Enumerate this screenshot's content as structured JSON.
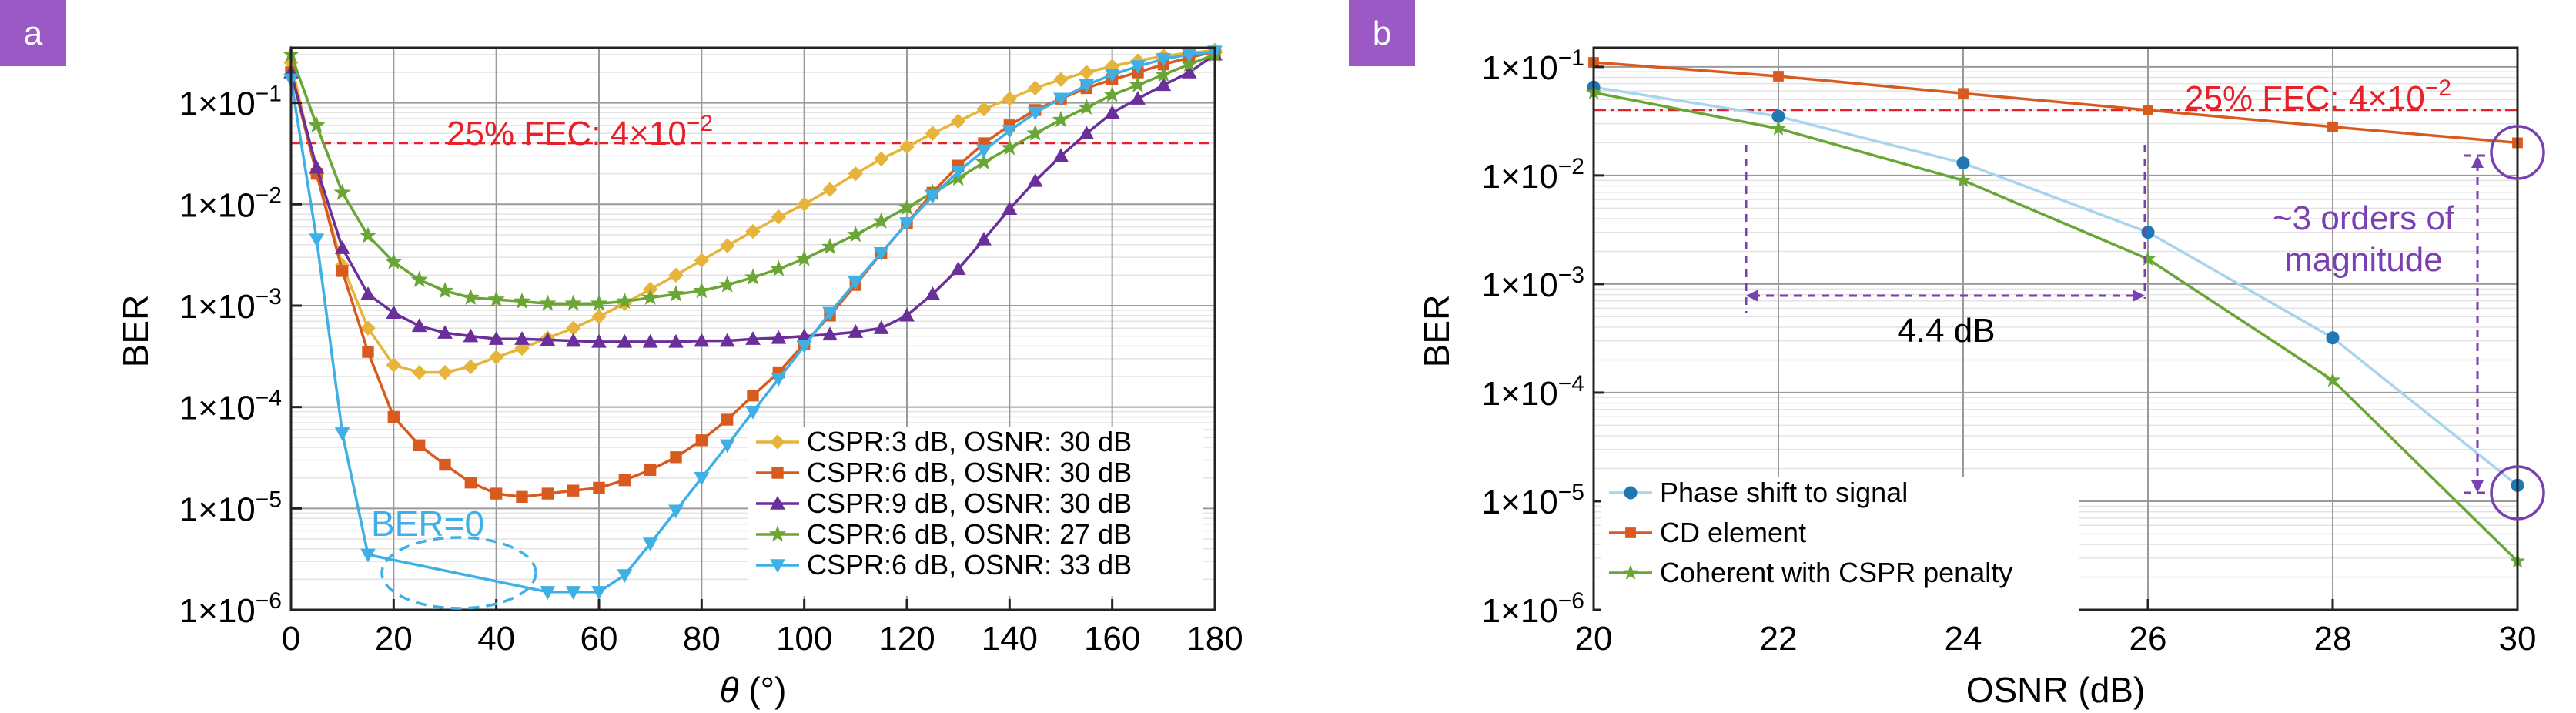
{
  "colors": {
    "badge": "#9b59c6",
    "fec": "#e8202a",
    "blue": "#3fb0e6",
    "orange": "#d85a1f",
    "purple": "#6a2f9a",
    "green": "#6aa636",
    "yellow": "#e6b43a",
    "blue_dark": "#1f77b4",
    "blue_light": "#a9d4ee",
    "annot": "#7a3fb0"
  },
  "chart_data": [
    {
      "panel_label": "a",
      "type": "line",
      "xlabel_symbol": "θ",
      "xlabel_unit": " (°)",
      "ylabel": "BER",
      "xlim": [
        0,
        180
      ],
      "ylim": [
        1e-06,
        0.35
      ],
      "yscale": "log",
      "grid": true,
      "x_ticks": [
        "0",
        "20",
        "40",
        "60",
        "80",
        "100",
        "120",
        "140",
        "160",
        "180"
      ],
      "y_ticks": [
        {
          "mant": "1×10",
          "exp": "−1"
        },
        {
          "mant": "1×10",
          "exp": "−2"
        },
        {
          "mant": "1×10",
          "exp": "−3"
        },
        {
          "mant": "1×10",
          "exp": "−4"
        },
        {
          "mant": "1×10",
          "exp": "−5"
        },
        {
          "mant": "1×10",
          "exp": "−6"
        }
      ],
      "fec_threshold": 0.04,
      "fec_label": "25% FEC: 4×10",
      "fec_label_exp": "−2",
      "annotation_ber0": "BER=0",
      "legend_position": "bottom-right",
      "series": [
        {
          "name": "CSPR:3 dB, OSNR: 30 dB",
          "marker": "diamond",
          "x": [
            0,
            5,
            10,
            15,
            20,
            25,
            30,
            35,
            40,
            45,
            50,
            55,
            60,
            65,
            70,
            75,
            80,
            85,
            90,
            95,
            100,
            105,
            110,
            115,
            120,
            125,
            130,
            135,
            140,
            145,
            150,
            155,
            160,
            165,
            170,
            175,
            180
          ],
          "y": [
            0.25,
            0.02,
            0.0025,
            0.0006,
            0.00026,
            0.00022,
            0.00022,
            0.00025,
            0.00031,
            0.00038,
            0.00048,
            0.0006,
            0.00078,
            0.00105,
            0.00145,
            0.002,
            0.0028,
            0.0039,
            0.0054,
            0.0075,
            0.01,
            0.014,
            0.02,
            0.028,
            0.037,
            0.05,
            0.066,
            0.087,
            0.11,
            0.14,
            0.17,
            0.2,
            0.23,
            0.26,
            0.29,
            0.31,
            0.33
          ]
        },
        {
          "name": "CSPR:6 dB, OSNR: 30 dB",
          "marker": "square",
          "x": [
            0,
            5,
            10,
            15,
            20,
            25,
            30,
            35,
            40,
            45,
            50,
            55,
            60,
            65,
            70,
            75,
            80,
            85,
            90,
            95,
            100,
            105,
            110,
            115,
            120,
            125,
            130,
            135,
            140,
            145,
            150,
            155,
            160,
            165,
            170,
            175,
            180
          ],
          "y": [
            0.2,
            0.02,
            0.0022,
            0.00035,
            8e-05,
            4.2e-05,
            2.7e-05,
            1.8e-05,
            1.4e-05,
            1.3e-05,
            1.4e-05,
            1.5e-05,
            1.6e-05,
            1.9e-05,
            2.4e-05,
            3.2e-05,
            4.7e-05,
            7.5e-05,
            0.00013,
            0.00022,
            0.00042,
            0.0008,
            0.0016,
            0.0033,
            0.0065,
            0.013,
            0.024,
            0.04,
            0.06,
            0.085,
            0.11,
            0.14,
            0.17,
            0.2,
            0.24,
            0.28,
            0.32
          ]
        },
        {
          "name": "CSPR:9 dB, OSNR: 30 dB",
          "marker": "triangle",
          "x": [
            0,
            5,
            10,
            15,
            20,
            25,
            30,
            35,
            40,
            45,
            50,
            55,
            60,
            65,
            70,
            75,
            80,
            85,
            90,
            95,
            100,
            105,
            110,
            115,
            120,
            125,
            130,
            135,
            140,
            145,
            150,
            155,
            160,
            165,
            170,
            175,
            180
          ],
          "y": [
            0.2,
            0.023,
            0.0037,
            0.0013,
            0.00085,
            0.00063,
            0.00054,
            0.0005,
            0.00047,
            0.00047,
            0.00046,
            0.00045,
            0.00044,
            0.00044,
            0.00044,
            0.00044,
            0.00045,
            0.00045,
            0.00047,
            0.00048,
            0.0005,
            0.00052,
            0.00055,
            0.0006,
            0.0008,
            0.0013,
            0.0023,
            0.0045,
            0.009,
            0.017,
            0.03,
            0.05,
            0.08,
            0.11,
            0.15,
            0.2,
            0.3
          ]
        },
        {
          "name": "CSPR:6 dB, OSNR: 27 dB",
          "marker": "star",
          "x": [
            0,
            5,
            10,
            15,
            20,
            25,
            30,
            35,
            40,
            45,
            50,
            55,
            60,
            65,
            70,
            75,
            80,
            85,
            90,
            95,
            100,
            105,
            110,
            115,
            120,
            125,
            130,
            135,
            140,
            145,
            150,
            155,
            160,
            165,
            170,
            175,
            180
          ],
          "y": [
            0.3,
            0.06,
            0.013,
            0.0049,
            0.0027,
            0.0018,
            0.0014,
            0.0012,
            0.00115,
            0.0011,
            0.00105,
            0.00105,
            0.00105,
            0.0011,
            0.0012,
            0.0013,
            0.0014,
            0.0016,
            0.0019,
            0.0023,
            0.0029,
            0.0038,
            0.005,
            0.0068,
            0.0093,
            0.013,
            0.018,
            0.026,
            0.036,
            0.05,
            0.068,
            0.09,
            0.12,
            0.15,
            0.19,
            0.24,
            0.3
          ]
        },
        {
          "name": "CSPR:6 dB, OSNR: 33 dB",
          "marker": "triangle-down",
          "x": [
            0,
            5,
            10,
            15,
            50,
            55,
            60,
            65,
            70,
            75,
            80,
            85,
            90,
            95,
            100,
            105,
            110,
            115,
            120,
            125,
            130,
            135,
            140,
            145,
            150,
            155,
            160,
            165,
            170,
            175,
            180
          ],
          "y": [
            0.17,
            0.0045,
            5.5e-05,
            3.5e-06,
            1.5e-06,
            1.5e-06,
            1.5e-06,
            2.2e-06,
            4.5e-06,
            9.5e-06,
            2e-05,
            4.2e-05,
            9e-05,
            0.00019,
            0.0004,
            0.00085,
            0.0017,
            0.0033,
            0.0065,
            0.012,
            0.021,
            0.034,
            0.053,
            0.08,
            0.11,
            0.15,
            0.19,
            0.23,
            0.27,
            0.3,
            0.32
          ]
        }
      ]
    },
    {
      "panel_label": "b",
      "type": "line",
      "xlabel": "OSNR (dB)",
      "ylabel": "BER",
      "xlim": [
        20,
        30
      ],
      "ylim": [
        1e-06,
        0.15
      ],
      "yscale": "log",
      "grid": true,
      "x_ticks": [
        "20",
        "22",
        "24",
        "26",
        "28",
        "30"
      ],
      "y_ticks": [
        {
          "mant": "1×10",
          "exp": "−1"
        },
        {
          "mant": "1×10",
          "exp": "−2"
        },
        {
          "mant": "1×10",
          "exp": "−3"
        },
        {
          "mant": "1×10",
          "exp": "−4"
        },
        {
          "mant": "1×10",
          "exp": "−5"
        },
        {
          "mant": "1×10",
          "exp": "−6"
        }
      ],
      "fec_threshold": 0.04,
      "fec_label": "25% FEC: 4×10",
      "fec_label_exp": "−2",
      "annotation_db": "4.4 dB",
      "annotation_orders": [
        "~3 orders of",
        "magnitude"
      ],
      "legend_position": "bottom-left",
      "series": [
        {
          "name": "Phase shift to signal",
          "marker": "circle",
          "x": [
            20,
            22,
            24,
            26,
            28,
            30
          ],
          "y": [
            0.065,
            0.035,
            0.013,
            0.003,
            0.00032,
            1.4e-05
          ]
        },
        {
          "name": "CD element",
          "marker": "square",
          "x": [
            20,
            22,
            24,
            26,
            28,
            30
          ],
          "y": [
            0.11,
            0.082,
            0.057,
            0.04,
            0.028,
            0.02
          ]
        },
        {
          "name": "Coherent with CSPR penalty",
          "marker": "star",
          "x": [
            20,
            22,
            24,
            26,
            28,
            30
          ],
          "y": [
            0.058,
            0.027,
            0.009,
            0.0017,
            0.00013,
            2.8e-06
          ]
        }
      ]
    }
  ]
}
